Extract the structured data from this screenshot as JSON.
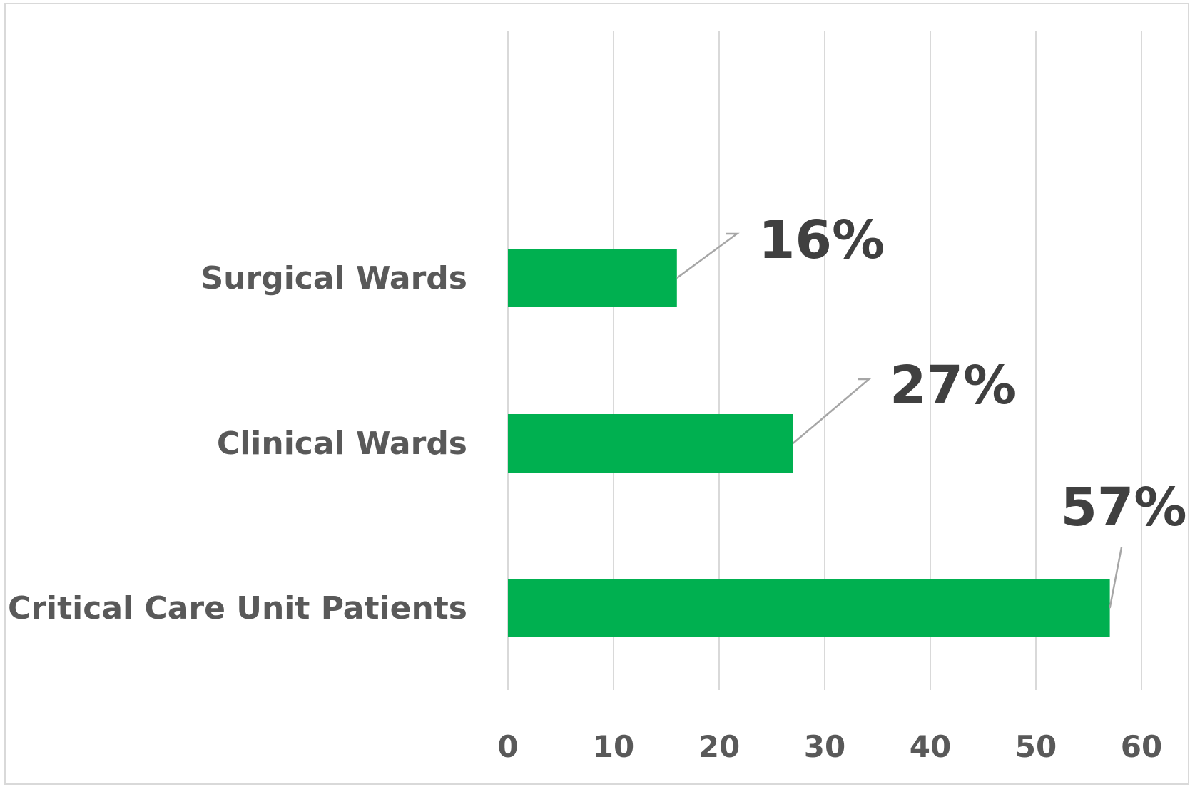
{
  "chart_data": {
    "type": "bar",
    "orientation": "horizontal",
    "title": "",
    "xlabel": "",
    "ylabel": "",
    "categories": [
      "Surgical Wards",
      "Clinical Wards",
      "Critical Care Unit Patients"
    ],
    "values": [
      16,
      27,
      57
    ],
    "data_labels": [
      "16%",
      "27%",
      "57%"
    ],
    "xlim": [
      0,
      60
    ],
    "x_ticks": [
      0,
      10,
      20,
      30,
      40,
      50,
      60
    ],
    "x_tick_labels": [
      "0",
      "10",
      "20",
      "30",
      "40",
      "50",
      "60"
    ],
    "grid": true,
    "legend": "none",
    "colors": {
      "bar": "#00b050",
      "gridline": "#d9d9d9",
      "label_text": "#595959",
      "data_label_text": "#404040",
      "leader_line": "#a6a6a6"
    }
  }
}
